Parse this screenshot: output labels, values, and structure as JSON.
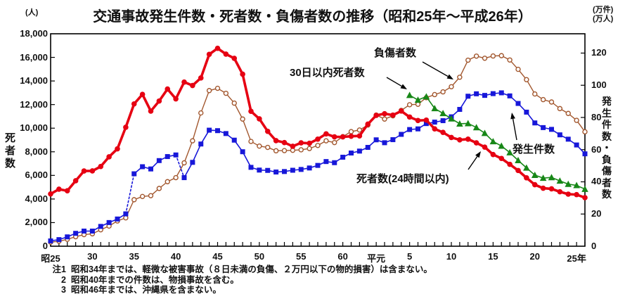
{
  "units": {
    "left": "(人)",
    "right_line1": "(万件)",
    "right_line2": "(万人)"
  },
  "annotations": {
    "injuries_label": "負傷者数",
    "deaths30_label": "30日以内死者数",
    "accidents_label": "発生件数",
    "deaths24_label": "死者数(24時間以内)"
  },
  "notes": [
    {
      "no": "注1",
      "text": "昭和34年までは、軽微な被害事故（８日未満の負傷、２万円以下の物的損害）は含まない。"
    },
    {
      "no": "2",
      "text": "昭和40年までの件数は、物損事故を含む。"
    },
    {
      "no": "3",
      "text": "昭和46年までは、沖縄県を含まない。"
    }
  ],
  "chart_data": {
    "type": "line",
    "title": "交通事故発生件数・死者数・負傷者数の推移（昭和25年～平成26年）",
    "start_year": 1950,
    "end_year": 2014,
    "x_ticks": {
      "years": [
        1950,
        1955,
        1960,
        1965,
        1970,
        1975,
        1980,
        1985,
        1989,
        1993,
        1998,
        2003,
        2008,
        2013
      ],
      "labels": [
        "昭25",
        "30",
        "35",
        "40",
        "45",
        "50",
        "55",
        "60",
        "平元",
        "5",
        "10",
        "15",
        "20",
        "25年"
      ]
    },
    "left_axis": {
      "label": "死者数",
      "unit": "人",
      "range": [
        0,
        18000
      ],
      "tick_step": 2000,
      "tick_labels": [
        "0",
        "2,000",
        "4,000",
        "6,000",
        "8,000",
        "10,000",
        "12,000",
        "14,000",
        "16,000",
        "18,000"
      ]
    },
    "right_axis": {
      "label": "発生件数・負傷者数",
      "units": [
        "万件",
        "万人"
      ],
      "range": [
        0,
        132
      ],
      "tick_values": [
        0,
        20,
        40,
        60,
        80,
        100,
        120
      ],
      "tick_labels": [
        "0",
        "20",
        "40",
        "60",
        "80",
        "100",
        "120"
      ]
    },
    "series": [
      {
        "name": "負傷者数",
        "axis": "right",
        "unit": "万人",
        "color": "#a2572e",
        "marker": "open-circle",
        "line_width": 1.4,
        "start_year": 1950,
        "values": [
          2.5,
          3.1,
          4.3,
          5.9,
          7.2,
          7.7,
          10.2,
          12.5,
          15.7,
          17.6,
          28.9,
          30.9,
          31.4,
          35.9,
          40.1,
          42.6,
          51.8,
          65.5,
          82.8,
          96.7,
          98.1,
          95.0,
          88.9,
          79.0,
          65.1,
          62.2,
          61.4,
          59.3,
          59.4,
          59.6,
          59.9,
          60.7,
          62.6,
          65.5,
          64.4,
          68.1,
          71.2,
          72.2,
          75.3,
          81.5,
          79.0,
          81.0,
          84.4,
          87.9,
          88.2,
          92.3,
          94.2,
          95.9,
          99.1,
          105.0,
          115.6,
          118.1,
          116.8,
          118.2,
          118.4,
          115.7,
          109.9,
          103.5,
          94.6,
          91.1,
          89.6,
          85.5,
          82.5,
          78.2,
          71.1
        ]
      },
      {
        "name": "発生件数",
        "axis": "right",
        "unit": "万件",
        "color": "#1717d9",
        "marker": "square",
        "line_width": 1.6,
        "start_year": 1950,
        "dotted_gaps": [
          [
            1959,
            1960
          ],
          [
            1965,
            1966
          ]
        ],
        "values": [
          3.3,
          4.1,
          5.8,
          8.0,
          9.4,
          9.4,
          12.3,
          14.7,
          16.9,
          20.1,
          45.0,
          49.4,
          48.0,
          53.2,
          55.7,
          56.7,
          42.6,
          52.1,
          63.5,
          72.1,
          71.8,
          70.0,
          65.9,
          58.7,
          49.0,
          47.3,
          47.1,
          46.1,
          46.4,
          47.2,
          47.7,
          48.6,
          50.2,
          52.6,
          51.9,
          55.3,
          57.9,
          59.1,
          61.4,
          66.1,
          64.3,
          66.2,
          69.5,
          72.5,
          72.9,
          76.2,
          77.1,
          78.0,
          80.4,
          85.0,
          93.2,
          94.7,
          93.7,
          94.8,
          95.3,
          93.4,
          88.7,
          83.3,
          76.6,
          73.7,
          72.6,
          69.2,
          66.5,
          62.9,
          57.4
        ]
      },
      {
        "name": "死者数(24時間以内)",
        "axis": "left",
        "unit": "人",
        "color": "#e60012",
        "marker": "dot",
        "line_width": 3.6,
        "start_year": 1950,
        "values": [
          4429,
          4829,
          4696,
          5544,
          6374,
          6379,
          6751,
          7575,
          8248,
          10079,
          12055,
          12865,
          11445,
          12301,
          13318,
          12484,
          13904,
          13618,
          14256,
          16257,
          16765,
          16278,
          15918,
          14574,
          11432,
          10792,
          9734,
          8945,
          8783,
          8466,
          8760,
          8719,
          9073,
          9520,
          9262,
          9261,
          9317,
          9347,
          10344,
          11086,
          11227,
          11109,
          11452,
          10945,
          10653,
          10684,
          9943,
          9642,
          9214,
          9012,
          9073,
          8757,
          8396,
          7768,
          7436,
          6937,
          6415,
          5796,
          5209,
          4914,
          4863,
          4612,
          4411,
          4373,
          4113
        ]
      },
      {
        "name": "30日以内死者数",
        "axis": "left",
        "unit": "人",
        "color": "#178717",
        "marker": "triangle",
        "line_width": 1.6,
        "start_year": 1993,
        "values": [
          12794,
          12387,
          12670,
          11674,
          11254,
          10805,
          10372,
          10403,
          10060,
          9575,
          8877,
          8492,
          7931,
          7272,
          6639,
          6023,
          5772,
          5828,
          5535,
          5261,
          5152,
          4838
        ]
      }
    ]
  }
}
